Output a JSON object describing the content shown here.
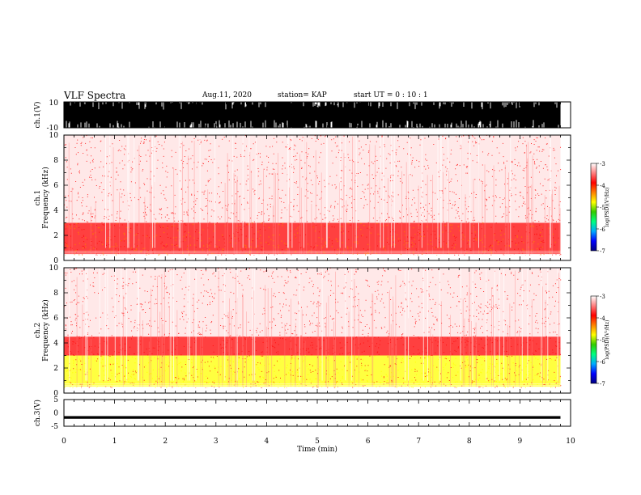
{
  "header": {
    "title": "VLF Spectra",
    "date": "Aug.11, 2020",
    "station": "station= KAP",
    "start_ut": "start  UT =   0 : 10 : 1"
  },
  "colors": {
    "colorbar_stops": [
      "#000080",
      "#0000ff",
      "#00aaff",
      "#00ff80",
      "#33cc00",
      "#ffff00",
      "#ff8000",
      "#ff0000",
      "#ff8080",
      "#ffffff"
    ],
    "waveform": "#000000",
    "spectrogram_background": "#ffffff"
  },
  "chart_data": [
    {
      "type": "line",
      "panel": "ch.1 waveform",
      "ylabel": "ch.1(V)",
      "ylim": [
        -10,
        10
      ],
      "y_tick_labels": [
        "10",
        "-10"
      ],
      "xlim": [
        0,
        10
      ],
      "description": "dense waveform filling nearly the full range with occasional dips near -10"
    },
    {
      "type": "heatmap",
      "panel": "ch.1 spectrogram",
      "ylabel": "ch.1 Frequency (kHz)",
      "xlim": [
        0,
        10
      ],
      "ylim": [
        0,
        10
      ],
      "y_ticks": [
        0,
        2,
        4,
        6,
        8,
        10
      ],
      "colorbar": {
        "label": "log(PSD)(V²/Hz)",
        "range": [
          -7,
          -3
        ],
        "ticks": [
          "-3",
          "-4",
          "-5",
          "-6",
          "-7"
        ]
      },
      "bands": [
        {
          "freq_range_khz": [
            0.5,
            3.0
          ],
          "log_psd": -4.0
        },
        {
          "freq_range_khz": [
            3.0,
            10.0
          ],
          "log_psd": -3.3
        }
      ],
      "data_end_min": 9.8
    },
    {
      "type": "heatmap",
      "panel": "ch.2 spectrogram",
      "ylabel": "ch.2 Frequency (kHz)",
      "xlim": [
        0,
        10
      ],
      "ylim": [
        0,
        10
      ],
      "y_ticks": [
        0,
        2,
        4,
        6,
        8,
        10
      ],
      "colorbar": {
        "label": "log(PSD)(V²/Hz)",
        "range": [
          -7,
          -3
        ],
        "ticks": [
          "-3",
          "-4",
          "-5",
          "-6",
          "-7"
        ]
      },
      "bands": [
        {
          "freq_range_khz": [
            0.5,
            3.0
          ],
          "log_psd": -4.6
        },
        {
          "freq_range_khz": [
            3.0,
            4.5
          ],
          "log_psd": -4.0
        },
        {
          "freq_range_khz": [
            4.5,
            10.0
          ],
          "log_psd": -3.3
        }
      ],
      "data_end_min": 9.8
    },
    {
      "type": "line",
      "panel": "ch.3 waveform",
      "ylabel": "ch.3(V)",
      "ylim": [
        -5,
        5
      ],
      "y_tick_labels": [
        "5",
        "0",
        "-5"
      ],
      "xlim": [
        0,
        10
      ],
      "x_ticks": [
        "0",
        "1",
        "2",
        "3",
        "4",
        "5",
        "6",
        "7",
        "8",
        "9",
        "10"
      ],
      "xlabel": "Time  (min)",
      "level_v": [
        -2.2,
        -1.2
      ]
    }
  ]
}
